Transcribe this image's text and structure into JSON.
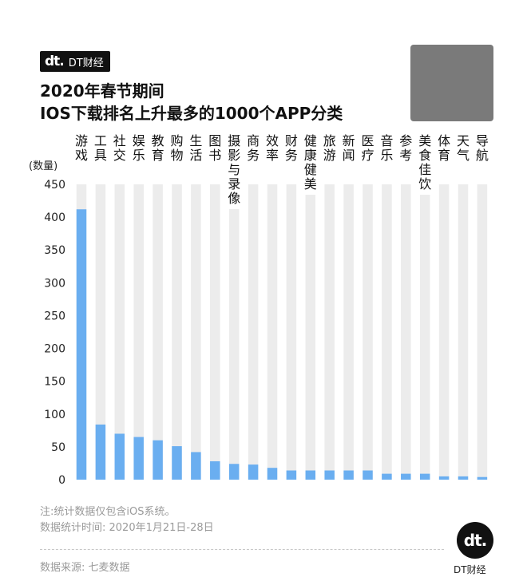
{
  "brand": {
    "mark": "dt.",
    "name": "DT财经"
  },
  "title": {
    "line1": "2020年春节期间",
    "line2": "IOS下载排名上升最多的1000个APP分类"
  },
  "chart_data": {
    "type": "bar",
    "ylabel": "(数量)",
    "ylim": [
      0,
      450
    ],
    "yticks": [
      0,
      50,
      100,
      150,
      200,
      250,
      300,
      350,
      400,
      450
    ],
    "grid": false,
    "categories": [
      "游戏",
      "工具",
      "社交",
      "娱乐",
      "教育",
      "购物",
      "生活",
      "图书",
      "摄影与录像",
      "商务",
      "效率",
      "财务",
      "健康健美",
      "旅游",
      "新闻",
      "医疗",
      "音乐",
      "参考",
      "美食佳饮",
      "体育",
      "天气",
      "导航"
    ],
    "values": [
      412,
      84,
      70,
      65,
      60,
      51,
      42,
      28,
      24,
      23,
      18,
      14,
      14,
      14,
      14,
      14,
      9,
      9,
      9,
      5,
      5,
      4
    ],
    "colors": {
      "bar": "#6aaef0",
      "track": "#ececec",
      "axis_text": "#222222",
      "label_text": "#111111"
    }
  },
  "footer": {
    "note1": "注:统计数据仅包含iOS系统。",
    "note2": "数据统计时间: 2020年1月21日-28日",
    "source": "数据来源: 七麦数据",
    "logo_mark": "dt.",
    "logo_text": "DT财经"
  }
}
